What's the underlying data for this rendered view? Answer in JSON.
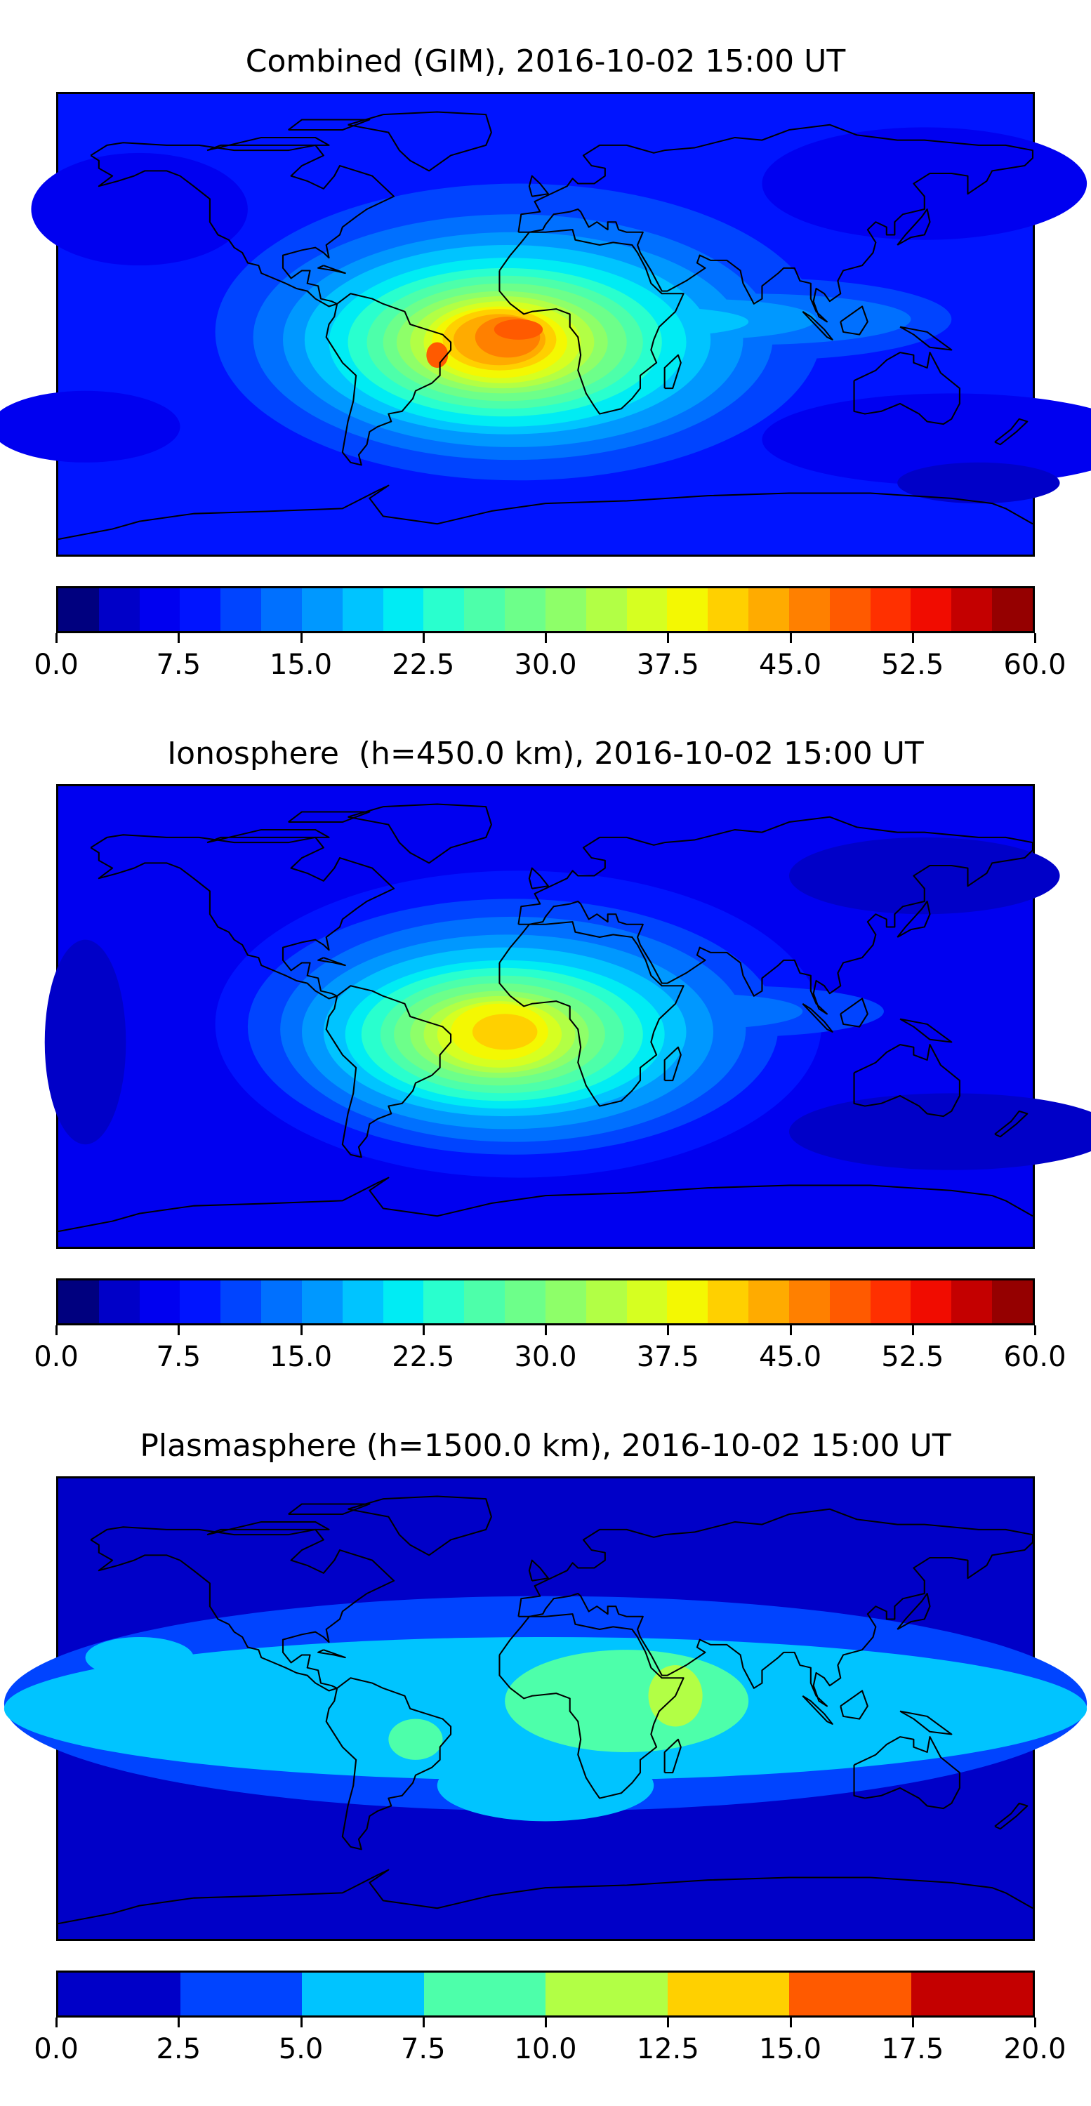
{
  "chart_data": [
    {
      "type": "heatmap",
      "title": "Combined (GIM), 2016-10-02 15:00 UT",
      "colorbar": {
        "range": [
          0,
          60
        ],
        "level_step": 2.5,
        "ticks": [
          "0.0",
          "7.5",
          "15.0",
          "22.5",
          "30.0",
          "37.5",
          "45.0",
          "52.5",
          "60.0"
        ],
        "colors": [
          "#00007f",
          "#0000c8",
          "#0000f0",
          "#0014ff",
          "#0044ff",
          "#0070ff",
          "#0098ff",
          "#00c4ff",
          "#00ecf4",
          "#29ffce",
          "#4dffaa",
          "#6dff8a",
          "#8eff69",
          "#b2ff45",
          "#d6ff21",
          "#f4f802",
          "#ffd000",
          "#ffab00",
          "#ff8000",
          "#ff5a00",
          "#ff3000",
          "#f10c00",
          "#c40000",
          "#950000"
        ]
      },
      "map": {
        "projection": "plate-carree",
        "lon_range": [
          -180,
          180
        ],
        "lat_range": [
          -90,
          90
        ],
        "peak_value_approx": 50,
        "peak_location": "South Atlantic / equatorial Africa & Brazil"
      }
    },
    {
      "type": "heatmap",
      "title": "Ionosphere  (h=450.0 km), 2016-10-02 15:00 UT",
      "colorbar": {
        "range": [
          0,
          60
        ],
        "level_step": 2.5,
        "ticks": [
          "0.0",
          "7.5",
          "15.0",
          "22.5",
          "30.0",
          "37.5",
          "45.0",
          "52.5",
          "60.0"
        ],
        "colors": [
          "#00007f",
          "#0000c8",
          "#0000f0",
          "#0014ff",
          "#0044ff",
          "#0070ff",
          "#0098ff",
          "#00c4ff",
          "#00ecf4",
          "#29ffce",
          "#4dffaa",
          "#6dff8a",
          "#8eff69",
          "#b2ff45",
          "#d6ff21",
          "#f4f802",
          "#ffd000",
          "#ffab00",
          "#ff8000",
          "#ff5a00",
          "#ff3000",
          "#f10c00",
          "#c40000",
          "#950000"
        ]
      },
      "map": {
        "projection": "plate-carree",
        "lon_range": [
          -180,
          180
        ],
        "lat_range": [
          -90,
          90
        ],
        "peak_value_approx": 40,
        "peak_location": "South Atlantic between Brazil and Africa"
      }
    },
    {
      "type": "heatmap",
      "title": "Plasmasphere (h=1500.0 km), 2016-10-02 15:00 UT",
      "colorbar": {
        "range": [
          0,
          20
        ],
        "level_step": 2.5,
        "ticks": [
          "0.0",
          "2.5",
          "5.0",
          "7.5",
          "10.0",
          "12.5",
          "15.0",
          "17.5",
          "20.0"
        ],
        "colors": [
          "#0000c8",
          "#0044ff",
          "#00c4ff",
          "#4dffaa",
          "#b2ff45",
          "#ffd000",
          "#ff5a00",
          "#c40000"
        ]
      },
      "map": {
        "projection": "plate-carree",
        "lon_range": [
          -180,
          180
        ],
        "lat_range": [
          -90,
          90
        ],
        "peak_value_approx": 11,
        "peak_location": "Horn of Africa / Arabian Sea"
      }
    }
  ]
}
